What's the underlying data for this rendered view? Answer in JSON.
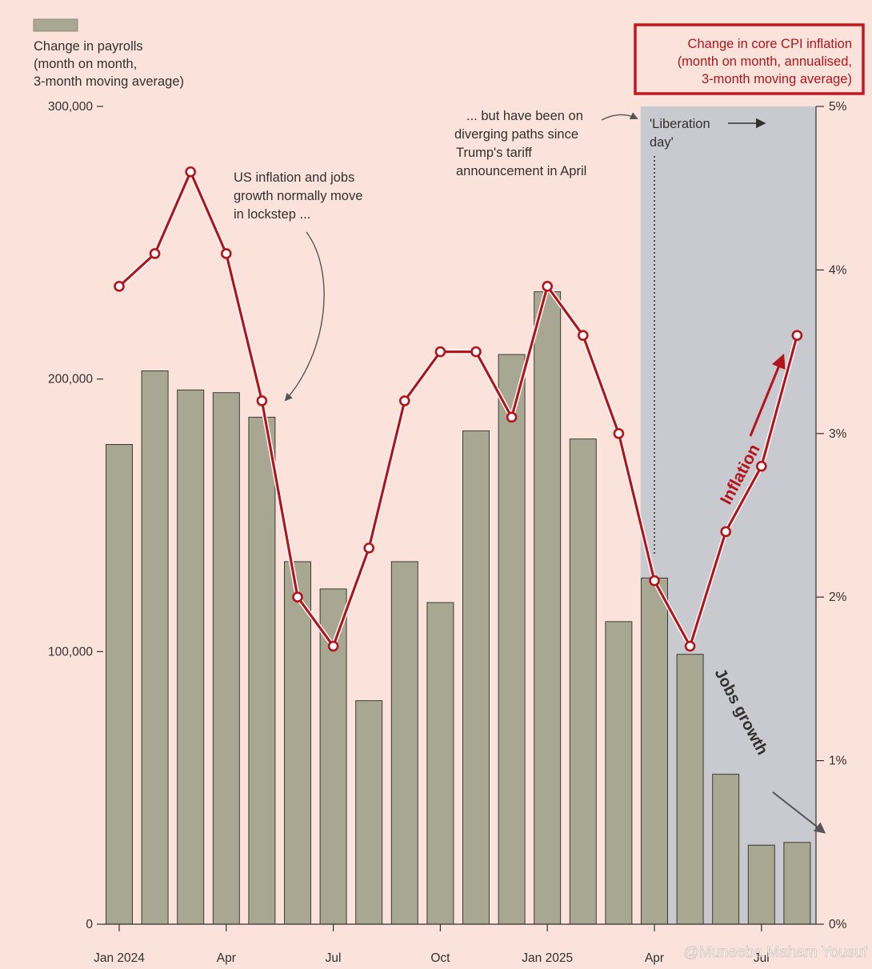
{
  "chart_data": {
    "type": "bar+line",
    "categories": [
      "Jan 2024",
      "Feb 2024",
      "Mar 2024",
      "Apr 2024",
      "May 2024",
      "Jun 2024",
      "Jul 2024",
      "Aug 2024",
      "Sep 2024",
      "Oct 2024",
      "Nov 2024",
      "Dec 2024",
      "Jan 2025",
      "Feb 2025",
      "Mar 2025",
      "Apr 2025",
      "May 2025",
      "Jun 2025",
      "Jul 2025",
      "Aug 2025"
    ],
    "x_tick_labels": [
      {
        "index": 0,
        "label": "Jan 2024"
      },
      {
        "index": 3,
        "label": "Apr"
      },
      {
        "index": 6,
        "label": "Jul"
      },
      {
        "index": 9,
        "label": "Oct"
      },
      {
        "index": 12,
        "label": "Jan 2025"
      },
      {
        "index": 15,
        "label": "Apr"
      },
      {
        "index": 18,
        "label": "Jul"
      }
    ],
    "series": [
      {
        "name": "Change in payrolls (month on month, 3-month moving average)",
        "type": "bar",
        "axis": "left",
        "color": "#a8a792",
        "values": [
          176000,
          203000,
          196000,
          195000,
          186000,
          133000,
          123000,
          82000,
          133000,
          118000,
          181000,
          209000,
          232000,
          178000,
          111000,
          127000,
          99000,
          55000,
          29000,
          30000
        ]
      },
      {
        "name": "Change in core CPI inflation (month on month, annualised, 3-month moving average)",
        "type": "line",
        "axis": "right",
        "color": "#b3151c",
        "values": [
          3.9,
          4.1,
          4.6,
          4.1,
          3.2,
          2.0,
          1.7,
          2.3,
          3.2,
          3.5,
          3.5,
          3.1,
          3.9,
          3.6,
          3.0,
          2.1,
          1.7,
          2.4,
          2.8,
          3.6
        ]
      }
    ],
    "left_axis": {
      "ylim": [
        0,
        300000
      ],
      "ticks": [
        "0",
        "100,000",
        "200,000",
        "300,000"
      ]
    },
    "right_axis": {
      "ylim": [
        0,
        5
      ],
      "ticks": [
        "0%",
        "1%",
        "2%",
        "3%",
        "4%",
        "5%"
      ]
    },
    "shaded_region": {
      "from_category": "Apr 2025",
      "to_category": "Aug 2025",
      "label": [
        "'Liberation",
        "day'"
      ]
    },
    "legend_left": [
      "Change in payrolls",
      "(month on month,",
      "3-month moving average)"
    ],
    "legend_right": [
      "Change in core CPI inflation",
      "(month on month, annualised,",
      "3-month moving average)"
    ],
    "annotations": {
      "lockstep": [
        "US inflation and jobs",
        "growth normally move",
        "in lockstep ..."
      ],
      "diverging": [
        "... but have been on",
        "diverging paths since",
        "Trump's tariff",
        "announcement in April"
      ],
      "inflation_label": "Inflation",
      "jobs_label": "Jobs growth"
    },
    "watermark": "@Muneeba Maham Yousuf"
  },
  "colors": {
    "background": "#fbe3dc",
    "bar": "#a8a792",
    "line": "#b3151c",
    "shade": "#c9c9d0",
    "text": "#33302e"
  }
}
